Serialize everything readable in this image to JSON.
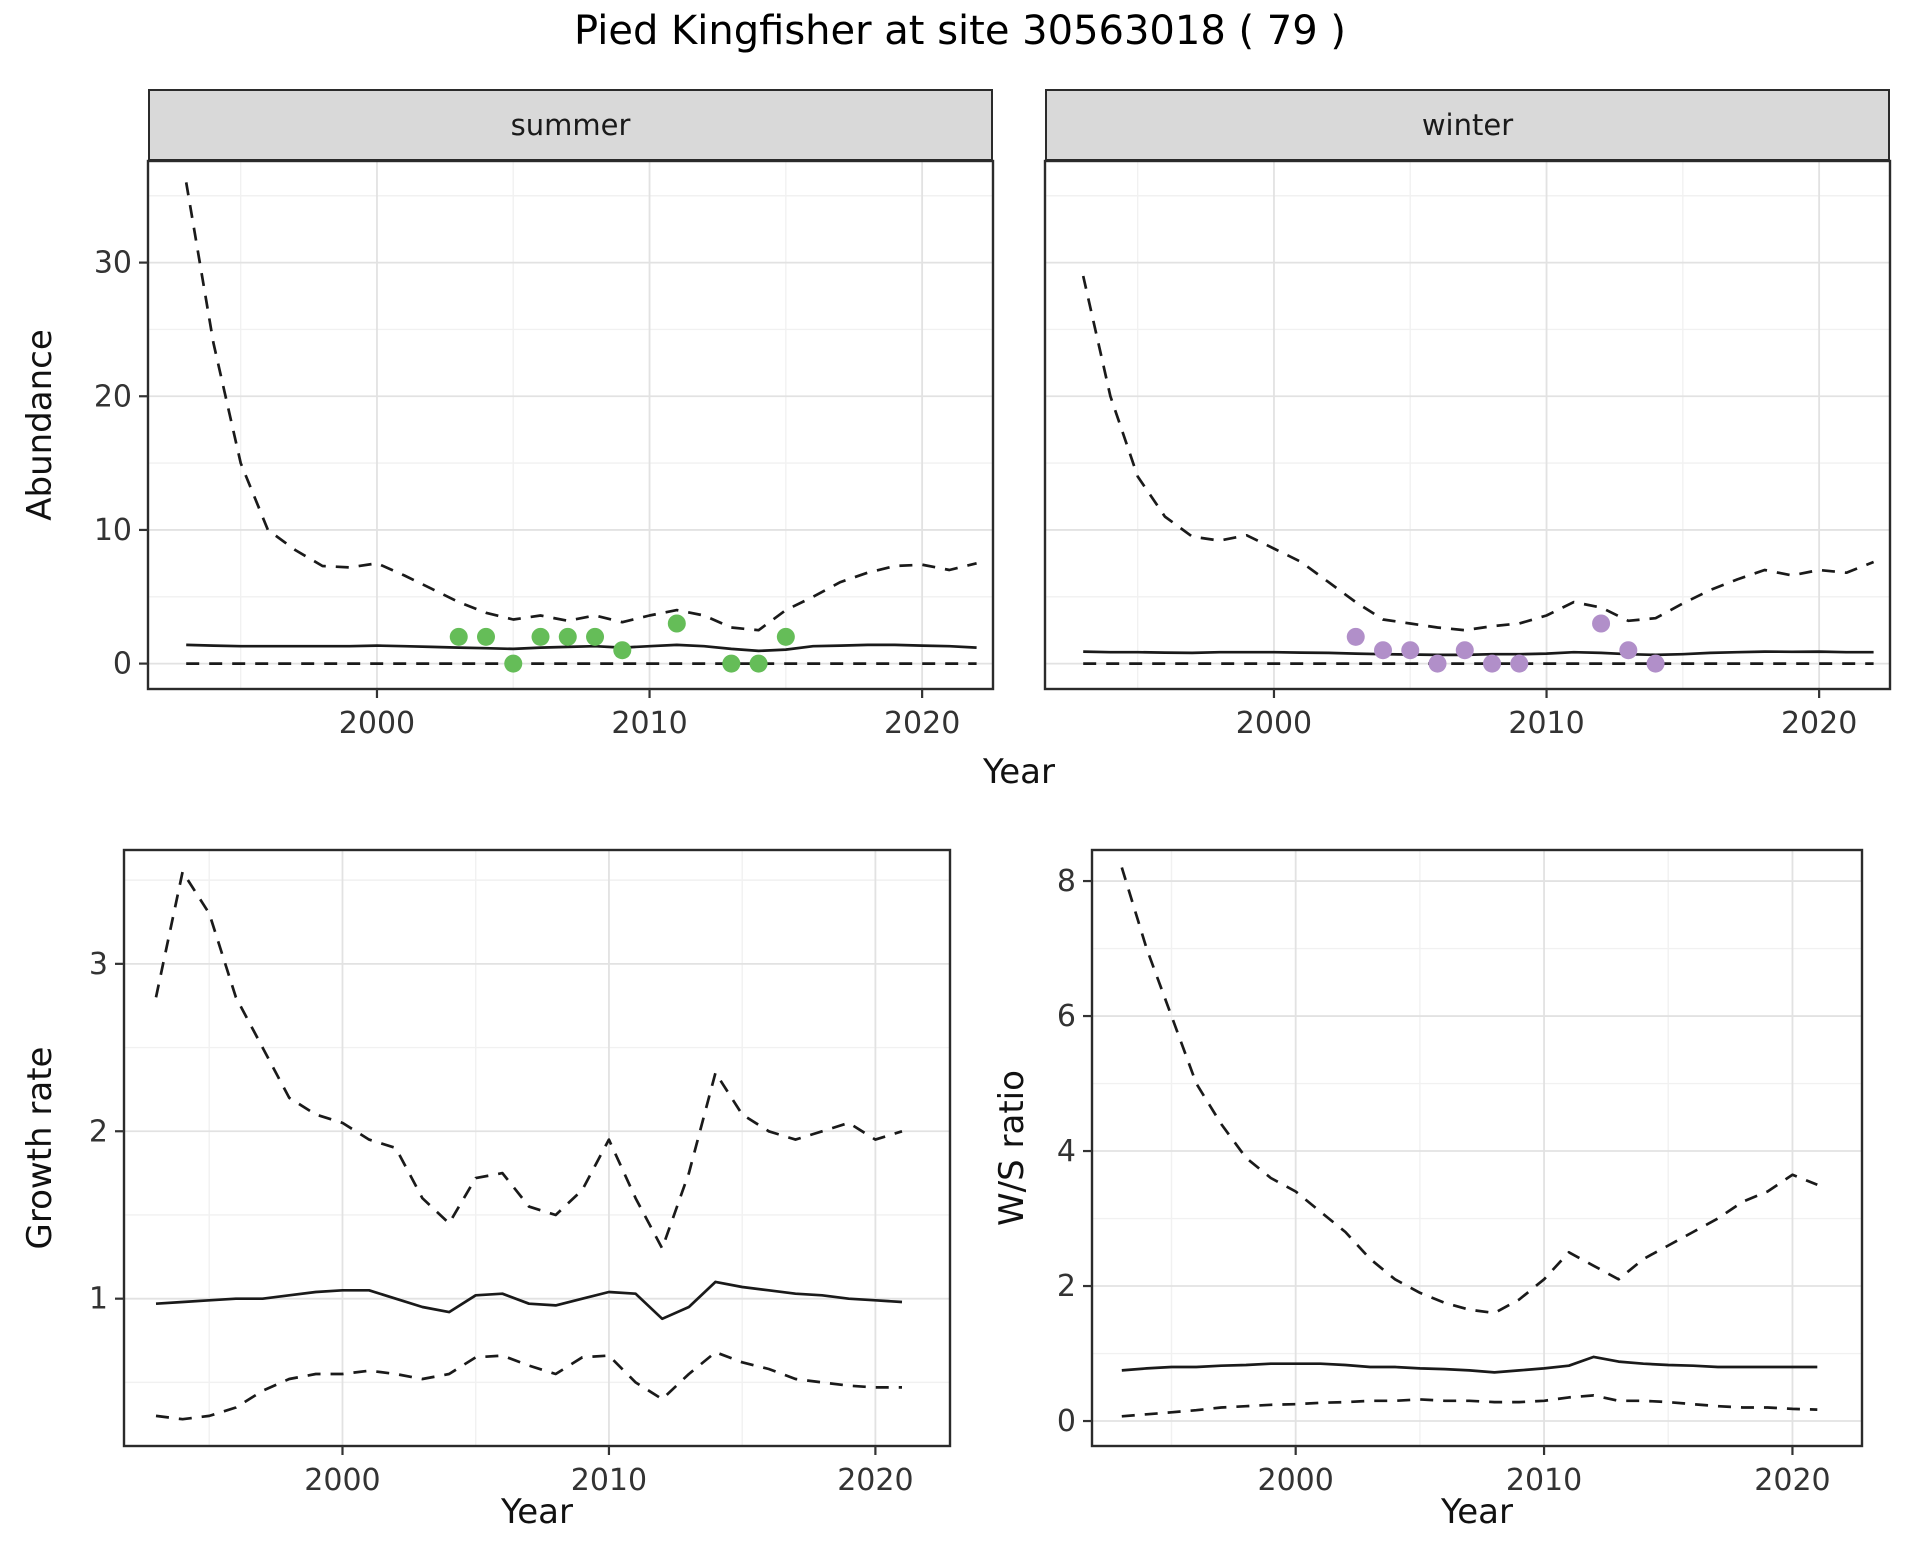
{
  "title": "Pied Kingfisher at site 30563018 ( 79 )",
  "facets": [
    {
      "label": "summer"
    },
    {
      "label": "winter"
    }
  ],
  "axis_titles": {
    "abundance": "Abundance",
    "year": "Year",
    "growth_rate": "Growth rate",
    "ws_ratio": "W/S ratio"
  },
  "colors": {
    "line": "#1a1a1a",
    "summer_points": "#65bd58",
    "winter_points": "#b18fc9",
    "strip_bg": "#d9d9d9",
    "grid_major": "#e2e2e2",
    "grid_minor": "#f1f1f1",
    "panel_border": "#2b2b2b",
    "tick_text": "#333333"
  },
  "chart_data": [
    {
      "id": "abundance-summer",
      "type": "line",
      "facet": "summer",
      "xlabel": "Year",
      "ylabel": "Abundance",
      "xlim": [
        1991.6,
        2022.6
      ],
      "ylim": [
        -1.9,
        37.6
      ],
      "x_ticks": [
        2000,
        2010,
        2020
      ],
      "x_minor": [
        1995,
        2005,
        2015
      ],
      "y_ticks": [
        0,
        10,
        20,
        30
      ],
      "y_minor": [
        5,
        15,
        25,
        35
      ],
      "show_y_tick_labels": true,
      "x": [
        1993,
        1994,
        1995,
        1996,
        1997,
        1998,
        1999,
        2000,
        2001,
        2002,
        2003,
        2004,
        2005,
        2006,
        2007,
        2008,
        2009,
        2010,
        2011,
        2012,
        2013,
        2014,
        2015,
        2016,
        2017,
        2018,
        2019,
        2020,
        2021,
        2022
      ],
      "series": [
        {
          "name": "upper_ci",
          "style": "dashed",
          "values": [
            36,
            24,
            15,
            10,
            8.5,
            7.3,
            7.2,
            7.5,
            6.6,
            5.6,
            4.6,
            3.8,
            3.3,
            3.6,
            3.2,
            3.6,
            3.1,
            3.6,
            4.0,
            3.6,
            2.7,
            2.5,
            4.0,
            5.0,
            6.1,
            6.8,
            7.3,
            7.4,
            7.0,
            7.5
          ]
        },
        {
          "name": "median",
          "style": "solid",
          "values": [
            1.4,
            1.35,
            1.3,
            1.3,
            1.3,
            1.3,
            1.3,
            1.35,
            1.3,
            1.25,
            1.2,
            1.15,
            1.1,
            1.2,
            1.25,
            1.3,
            1.2,
            1.3,
            1.4,
            1.3,
            1.1,
            0.95,
            1.05,
            1.3,
            1.35,
            1.4,
            1.4,
            1.35,
            1.3,
            1.2
          ]
        },
        {
          "name": "lower_ci",
          "style": "dashed",
          "values": [
            0,
            0,
            0,
            0,
            0,
            0,
            0,
            0,
            0,
            0,
            0,
            0,
            0,
            0,
            0,
            0,
            0,
            0,
            0,
            0,
            0,
            0,
            0,
            0,
            0,
            0,
            0,
            0,
            0,
            0
          ]
        }
      ],
      "points": {
        "name": "observed-counts-summer",
        "color_key": "summer_points",
        "x": [
          2003,
          2004,
          2005,
          2006,
          2007,
          2008,
          2009,
          2011,
          2013,
          2014,
          2015
        ],
        "y": [
          2,
          2,
          0,
          2,
          2,
          2,
          1,
          3,
          0,
          0,
          2
        ]
      }
    },
    {
      "id": "abundance-winter",
      "type": "line",
      "facet": "winter",
      "xlabel": "Year",
      "ylabel": "Abundance",
      "xlim": [
        1991.6,
        2022.6
      ],
      "ylim": [
        -1.9,
        37.6
      ],
      "x_ticks": [
        2000,
        2010,
        2020
      ],
      "x_minor": [
        1995,
        2005,
        2015
      ],
      "y_ticks": [
        0,
        10,
        20,
        30
      ],
      "y_minor": [
        5,
        15,
        25,
        35
      ],
      "show_y_tick_labels": false,
      "x": [
        1993,
        1994,
        1995,
        1996,
        1997,
        1998,
        1999,
        2000,
        2001,
        2002,
        2003,
        2004,
        2005,
        2006,
        2007,
        2008,
        2009,
        2010,
        2011,
        2012,
        2013,
        2014,
        2015,
        2016,
        2017,
        2018,
        2019,
        2020,
        2021,
        2022
      ],
      "series": [
        {
          "name": "upper_ci",
          "style": "dashed",
          "values": [
            29,
            20,
            14,
            11,
            9.5,
            9.2,
            9.6,
            8.6,
            7.6,
            6.1,
            4.6,
            3.3,
            3.0,
            2.7,
            2.5,
            2.8,
            3.0,
            3.6,
            4.6,
            4.2,
            3.2,
            3.4,
            4.5,
            5.5,
            6.3,
            7.0,
            6.6,
            7.0,
            6.8,
            7.6
          ]
        },
        {
          "name": "median",
          "style": "solid",
          "values": [
            0.9,
            0.85,
            0.85,
            0.82,
            0.8,
            0.85,
            0.85,
            0.85,
            0.82,
            0.8,
            0.75,
            0.7,
            0.68,
            0.65,
            0.65,
            0.7,
            0.7,
            0.75,
            0.85,
            0.8,
            0.7,
            0.65,
            0.7,
            0.8,
            0.85,
            0.9,
            0.88,
            0.9,
            0.85,
            0.85
          ]
        },
        {
          "name": "lower_ci",
          "style": "dashed",
          "values": [
            0,
            0,
            0,
            0,
            0,
            0,
            0,
            0,
            0,
            0,
            0,
            0,
            0,
            0,
            0,
            0,
            0,
            0,
            0,
            0,
            0,
            0,
            0,
            0,
            0,
            0,
            0,
            0,
            0,
            0
          ]
        }
      ],
      "points": {
        "name": "observed-counts-winter",
        "color_key": "winter_points",
        "x": [
          2003,
          2004,
          2005,
          2006,
          2007,
          2008,
          2009,
          2012,
          2013,
          2014
        ],
        "y": [
          2,
          1,
          1,
          0,
          1,
          0,
          0,
          3,
          1,
          0
        ]
      }
    },
    {
      "id": "growth-rate",
      "type": "line",
      "xlabel": "Year",
      "ylabel": "Growth rate",
      "xlim": [
        1991.8,
        2022.8
      ],
      "ylim": [
        0.12,
        3.68
      ],
      "x_ticks": [
        2000,
        2010,
        2020
      ],
      "x_minor": [
        1995,
        2005,
        2015
      ],
      "y_ticks": [
        1,
        2,
        3
      ],
      "y_minor": [
        0.5,
        1.5,
        2.5,
        3.5
      ],
      "show_y_tick_labels": true,
      "x": [
        1993,
        1994,
        1995,
        1996,
        1997,
        1998,
        1999,
        2000,
        2001,
        2002,
        2003,
        2004,
        2005,
        2006,
        2007,
        2008,
        2009,
        2010,
        2011,
        2012,
        2013,
        2014,
        2015,
        2016,
        2017,
        2018,
        2019,
        2020,
        2021
      ],
      "series": [
        {
          "name": "upper_ci",
          "style": "dashed",
          "values": [
            2.8,
            3.55,
            3.3,
            2.8,
            2.5,
            2.2,
            2.1,
            2.05,
            1.95,
            1.9,
            1.6,
            1.45,
            1.72,
            1.75,
            1.55,
            1.5,
            1.65,
            1.95,
            1.6,
            1.3,
            1.75,
            2.35,
            2.1,
            2.0,
            1.95,
            2.0,
            2.05,
            1.95,
            2.0
          ]
        },
        {
          "name": "median",
          "style": "solid",
          "values": [
            0.97,
            0.98,
            0.99,
            1.0,
            1.0,
            1.02,
            1.04,
            1.05,
            1.05,
            1.0,
            0.95,
            0.92,
            1.02,
            1.03,
            0.97,
            0.96,
            1.0,
            1.04,
            1.03,
            0.88,
            0.95,
            1.1,
            1.07,
            1.05,
            1.03,
            1.02,
            1.0,
            0.99,
            0.98
          ]
        },
        {
          "name": "lower_ci",
          "style": "dashed",
          "values": [
            0.3,
            0.28,
            0.3,
            0.35,
            0.45,
            0.52,
            0.55,
            0.55,
            0.57,
            0.55,
            0.52,
            0.55,
            0.65,
            0.66,
            0.6,
            0.55,
            0.65,
            0.66,
            0.5,
            0.4,
            0.55,
            0.68,
            0.62,
            0.58,
            0.52,
            0.5,
            0.48,
            0.47,
            0.47
          ]
        }
      ]
    },
    {
      "id": "ws-ratio",
      "type": "line",
      "xlabel": "Year",
      "ylabel": "W/S ratio",
      "xlim": [
        1991.8,
        2022.8
      ],
      "ylim": [
        -0.37,
        8.46
      ],
      "x_ticks": [
        2000,
        2010,
        2020
      ],
      "x_minor": [
        1995,
        2005,
        2015
      ],
      "y_ticks": [
        0,
        2,
        4,
        6,
        8
      ],
      "y_minor": [
        1,
        3,
        5,
        7
      ],
      "show_y_tick_labels": true,
      "x": [
        1993,
        1994,
        1995,
        1996,
        1997,
        1998,
        1999,
        2000,
        2001,
        2002,
        2003,
        2004,
        2005,
        2006,
        2007,
        2008,
        2009,
        2010,
        2011,
        2012,
        2013,
        2014,
        2015,
        2016,
        2017,
        2018,
        2019,
        2020,
        2021
      ],
      "series": [
        {
          "name": "upper_ci",
          "style": "dashed",
          "values": [
            8.2,
            7.0,
            6.0,
            5.0,
            4.4,
            3.9,
            3.6,
            3.4,
            3.1,
            2.8,
            2.4,
            2.1,
            1.9,
            1.75,
            1.65,
            1.6,
            1.8,
            2.1,
            2.5,
            2.3,
            2.1,
            2.4,
            2.6,
            2.8,
            3.0,
            3.25,
            3.4,
            3.65,
            3.5
          ]
        },
        {
          "name": "median",
          "style": "solid",
          "values": [
            0.75,
            0.78,
            0.8,
            0.8,
            0.82,
            0.83,
            0.85,
            0.85,
            0.85,
            0.83,
            0.8,
            0.8,
            0.78,
            0.77,
            0.75,
            0.72,
            0.75,
            0.78,
            0.82,
            0.95,
            0.88,
            0.85,
            0.83,
            0.82,
            0.8,
            0.8,
            0.8,
            0.8,
            0.8
          ]
        },
        {
          "name": "lower_ci",
          "style": "dashed",
          "values": [
            0.07,
            0.1,
            0.13,
            0.16,
            0.2,
            0.22,
            0.24,
            0.25,
            0.27,
            0.28,
            0.3,
            0.3,
            0.32,
            0.3,
            0.3,
            0.28,
            0.28,
            0.3,
            0.35,
            0.38,
            0.3,
            0.3,
            0.28,
            0.25,
            0.22,
            0.2,
            0.2,
            0.18,
            0.17
          ]
        }
      ]
    }
  ]
}
